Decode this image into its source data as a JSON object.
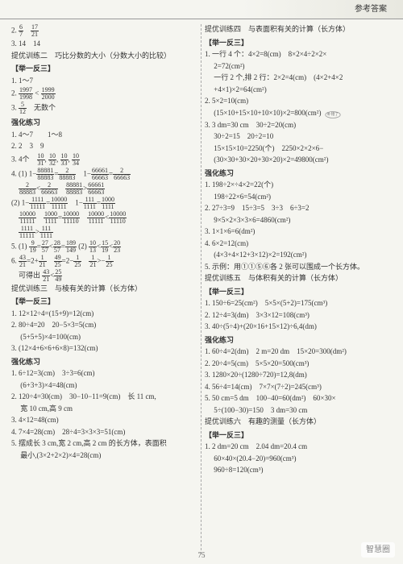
{
  "header": "参考答案",
  "watermark": "智慧圈",
  "pagenum": "75",
  "left": {
    "l1_a": {
      "n": "6",
      "d": "7"
    },
    "l1_b": {
      "n": "17",
      "d": "21"
    },
    "l2": "3. 14　14",
    "l3": "提优训练二　巧比分数的大小（分数大小的比较）",
    "l4": "【举一反三】",
    "l5": "1. 1～7",
    "l6_a": {
      "n": "1997",
      "d": "1998"
    },
    "l6_b": {
      "n": "1999",
      "d": "2000"
    },
    "l7_a": {
      "n": "5",
      "d": "12"
    },
    "l7_b": "无数个",
    "l8": "强化练习",
    "l9": "1. 4～7　　1～8",
    "l10": "2. 2　3　9",
    "l11_a": "3. 4个",
    "l11_b": {
      "n": "10",
      "d": "31"
    },
    "l11_c": {
      "n": "10",
      "d": "32"
    },
    "l11_d": {
      "n": "10",
      "d": "33"
    },
    "l11_e": {
      "n": "10",
      "d": "34"
    },
    "l12_pre": "4. (1) 1−",
    "l12_a": {
      "n": "88881",
      "d": "88883"
    },
    "l12_b": {
      "n": "2",
      "d": "88883"
    },
    "l12_c": {
      "n": "66661",
      "d": "66663"
    },
    "l12_d": {
      "n": "2",
      "d": "66663"
    },
    "l13_a": {
      "n": "2",
      "d": "88883"
    },
    "l13_b": {
      "n": "2",
      "d": "66663"
    },
    "l13_c": {
      "n": "88881",
      "d": "88883"
    },
    "l13_d": {
      "n": "66661",
      "d": "66663"
    },
    "l14_pre": "(2) 1−",
    "l14_a": {
      "n": "1111",
      "d": "11111"
    },
    "l14_b": {
      "n": "10000",
      "d": "11111"
    },
    "l14_c": {
      "n": "111",
      "d": "1111"
    },
    "l14_d": {
      "n": "1000",
      "d": "1111"
    },
    "l15_a": {
      "n": "10000",
      "d": "11111"
    },
    "l15_b": {
      "n": "1000",
      "d": "1111"
    },
    "l15_c": {
      "n": "10000",
      "d": "11110"
    },
    "l15_d": {
      "n": "10000",
      "d": "11111"
    },
    "l15_e": {
      "n": "10000",
      "d": "11110"
    },
    "l16_a": {
      "n": "1111",
      "d": "11111"
    },
    "l16_b": {
      "n": "111",
      "d": "1111"
    },
    "l17_pre": "5. (1)",
    "l17_a": {
      "n": "9",
      "d": "19"
    },
    "l17_b": {
      "n": "27",
      "d": "57"
    },
    "l17_c": {
      "n": "28",
      "d": "57"
    },
    "l17_d": {
      "n": "189",
      "d": "149"
    },
    "l17_e": {
      "n": "10",
      "d": "13"
    },
    "l17_f": {
      "n": "15",
      "d": "19"
    },
    "l17_g": {
      "n": "20",
      "d": "23"
    },
    "l18_pre": "6.",
    "l18_a": {
      "n": "43",
      "d": "21"
    },
    "l18_b": {
      "n": "1",
      "d": "21"
    },
    "l18_c": {
      "n": "49",
      "d": "25"
    },
    "l18_d": {
      "n": "1",
      "d": "25"
    },
    "l18_e": {
      "n": "1",
      "d": "21"
    },
    "l18_f": {
      "n": "1",
      "d": "25"
    },
    "l19_pre": "可得出",
    "l19_a": {
      "n": "43",
      "d": "21"
    },
    "l19_b": {
      "n": "25",
      "d": "49"
    },
    "l20": "提优训练三　与棱有关的计算（长方体）",
    "l21": "【举一反三】",
    "l22": "1. 12×12÷4=(15+9)=12(cm)",
    "l23": "2. 80÷4=20　20−5×3=5(cm)",
    "l24": "　 (5+5+5)×4=100(cm)",
    "l25": "3. (12×4+6×6+6×8)=132(cm)",
    "l26": "强化练习",
    "l27": "1. 6÷12=3(cm)　3÷3=6(cm)",
    "l28": "　 (6+3+3)×4=48(cm)",
    "l29": "2. 120÷4=30(cm)　30−10−11=9(cm)　长 11 cm,",
    "l30": "　 宽 10 cm,高 9 cm",
    "l31": "3. 4×12=48(cm)",
    "l32": "4. 7×4=28(cm)　28÷4=3×3×3=51(cm)",
    "l33": "5. 摆成长 3 cm,宽 2 cm,高 2 cm 的长方体，表面积",
    "l34": "　 最小,(3×2+2×2)×4=28(cm)"
  },
  "right": {
    "r1": "提优训练四　与表面积有关的计算（长方体）",
    "r2": "【举一反三】",
    "r3": "1. 一行 4 个：4×2=8(cm)　8×2×4÷2×2×",
    "r4": "　 2=72(cm²)",
    "r5": "　 一行 2 个,排 2 行：2×2=4(cm)　(4×2+4×2",
    "r6": "　 +4×1)×2=64(cm²)",
    "r7": "2. 5×2=10(cm)",
    "r7b_note": "补错了",
    "r8": "　 (15×10+15×10+10×10)×2=800(cm²)",
    "r9": "3. 3 dm=30 cm　30÷2=20(cm)",
    "r10": "　 30÷2=15　20÷2=10",
    "r11": "　 15×15×10=2250(个)　2250×2×2×6−",
    "r12": "　 (30×30+30×20+30×20)×2=49800(cm²)",
    "r13": "强化练习",
    "r14": "1. 198÷2×÷4×2=22(个)",
    "r15": "　 198÷22×6=54(cm²)",
    "r16": "2. 27÷3=9　15÷3=5　3÷3　6÷3=2",
    "r17": "　 9×5×2×3×3×6=4860(cm²)",
    "r18": "3. 1×1×6=6(dm²)",
    "r19": "4. 6×2=12(cm)",
    "r20": "　 (4×3+4×12+3×12)×2=192(cm²)",
    "r21": "5. 示例：用①①⑤⑥各 2 张可以围成一个长方体。",
    "r22": "提优训练五　与体积有关的计算（长方体）",
    "r23": "【举一反三】",
    "r24": "1. 150÷6=25(cm²)　5×5×(5+2)=175(cm³)",
    "r25": "2. 12÷4=3(dm)　3×3×12=108(cm³)",
    "r26": "3. 40÷(5÷4)+(20×16+15×12)÷6,4(dm)",
    "r27": "强化练习",
    "r28": "1. 60÷4=2(dm)　2 m=20 dm　15×20=300(dm²)",
    "r29": "2. 20÷4=5(cm)　5×5×20=500(cm³)",
    "r30": "3. 1280×20÷(1280÷720)=12,8(dm)",
    "r31": "4. 56÷4=14(cm)　7×7×(7÷2)=245(cm³)",
    "r32": "5. 50 cm=5 dm　100−40=60(dm²)　60×30×",
    "r33": "　 5÷(100−30)=150　3 dm=30 cm",
    "r34": "提优训练六　有趣的测量（长方体）",
    "r35": "【举一反三】",
    "r36": "1. 2 dm=20 cm　2.04 dm=20.4 cm",
    "r37": "　 60×40×(20.4−20)=960(cm³)",
    "r38": "　 960÷8=120(cm³)"
  }
}
